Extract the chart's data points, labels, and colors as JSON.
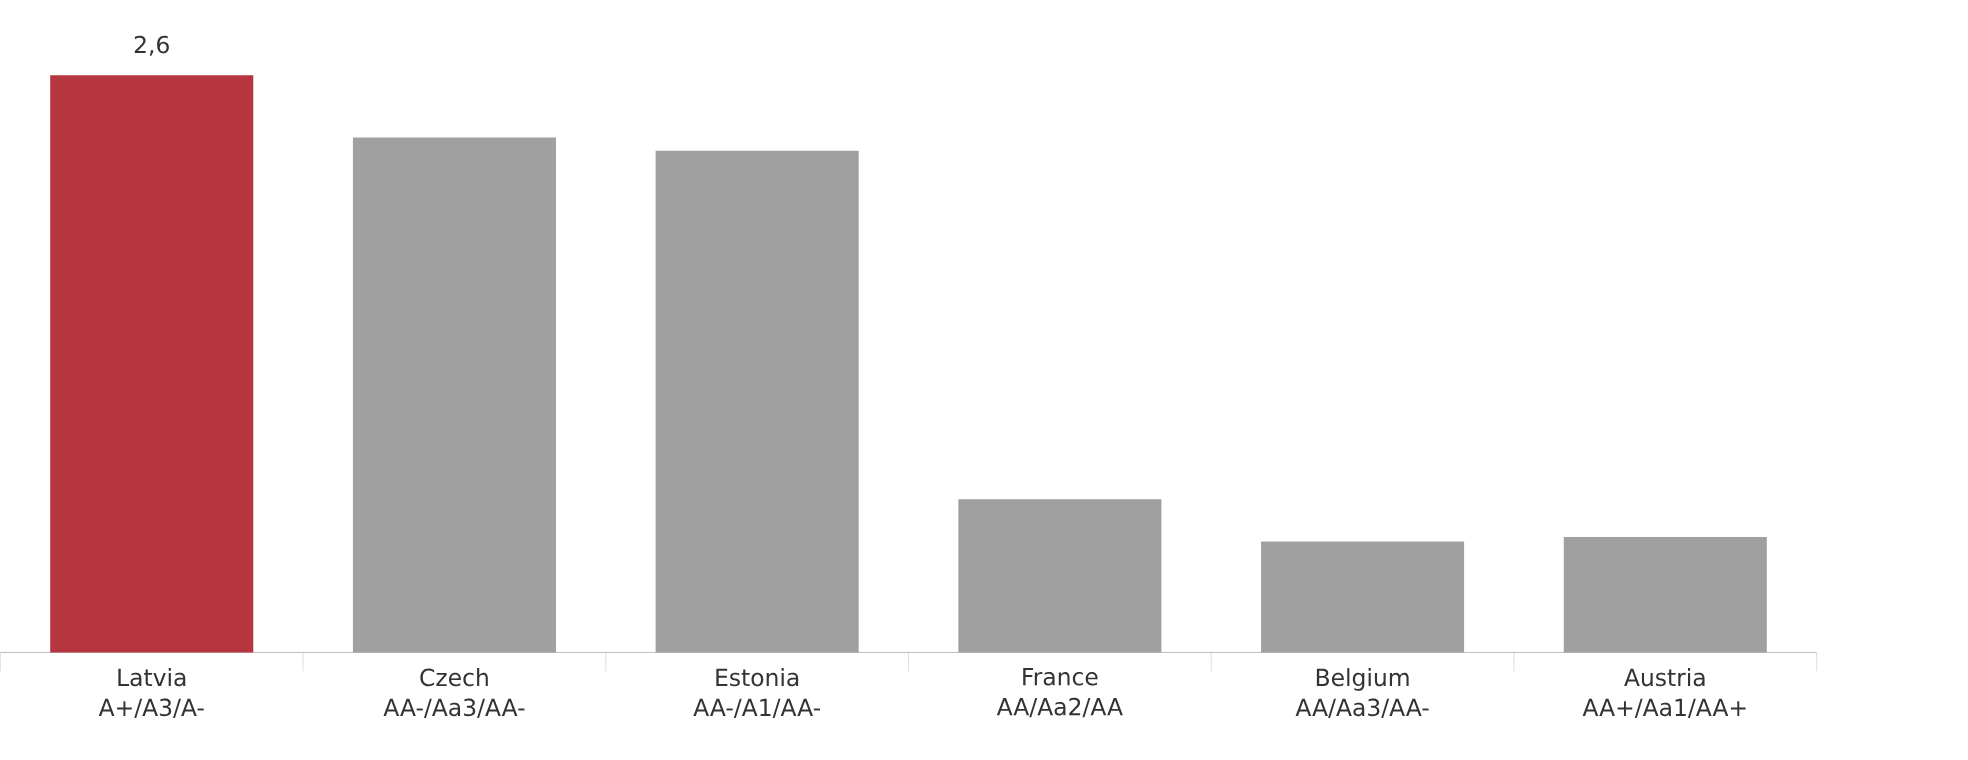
{
  "chart_data": {
    "type": "bar",
    "categories": [
      "Latvia A+/A3/A-",
      "Czech AA-/Aa3/AA-",
      "Estonia AA-/A1/AA-",
      "France AA/Aa2/AA",
      "Belgium AA/Aa3/AA-",
      "Austria AA+/Aa1/AA+"
    ],
    "values": [
      2.6,
      2.32,
      2.26,
      0.69,
      0.5,
      0.52
    ],
    "value_labels": [
      "2,6",
      null,
      null,
      null,
      null,
      null
    ],
    "colors": [
      "#b5363e",
      "#a0a0a0",
      "#a0a0a0",
      "#a0a0a0",
      "#a0a0a0",
      "#a0a0a0"
    ]
  }
}
